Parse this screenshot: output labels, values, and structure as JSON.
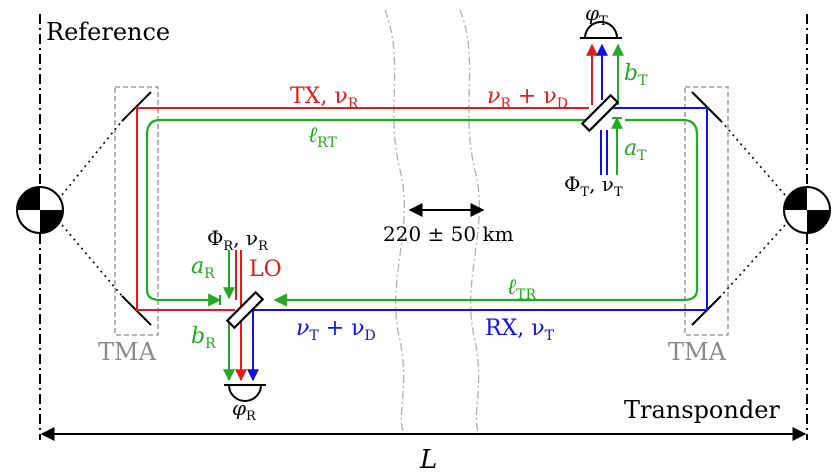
{
  "labels": {
    "reference": "Reference",
    "transponder": "Transponder",
    "distance_L": "L",
    "gap_distance": "220 ± 50 km",
    "tma_left": "TMA",
    "tma_right": "TMA",
    "tx": "TX, ν",
    "tx_sub": "R",
    "rx": "RX, ν",
    "rx_sub": "T",
    "nu_r_plus_nu_d": "ν",
    "nu_r_plus_nu_d_sub1": "R",
    "nu_r_plus_nu_d_mid": " + ν",
    "nu_r_plus_nu_d_sub2": "D",
    "nu_t_plus_nu_d": "ν",
    "nu_t_plus_nu_d_sub1": "T",
    "nu_t_plus_nu_d_mid": " + ν",
    "nu_t_plus_nu_d_sub2": "D",
    "l_rt": "ℓ",
    "l_rt_sub": "RT",
    "l_tr": "ℓ",
    "l_tr_sub": "TR",
    "phi_t": "Φ",
    "phi_t_sub": "T",
    "phi_t_nu": ", ν",
    "phi_t_nu_sub": "T",
    "phi_r": "Φ",
    "phi_r_sub": "R",
    "phi_r_nu": ", ν",
    "phi_r_nu_sub": "R",
    "varphi_t": "φ",
    "varphi_t_sub": "T",
    "varphi_r": "φ",
    "varphi_r_sub": "R",
    "a_t": "a",
    "a_t_sub": "T",
    "b_t": "b",
    "b_t_sub": "T",
    "a_r": "a",
    "a_r_sub": "R",
    "b_r": "b",
    "b_r_sub": "R",
    "lo": "LO"
  },
  "colors": {
    "tx_beam": "#e41a1a",
    "rx_beam": "#1010e6",
    "path": "#22aa22",
    "tma_box": "#8a8a8a",
    "gap_lines": "#b0b0b0"
  }
}
